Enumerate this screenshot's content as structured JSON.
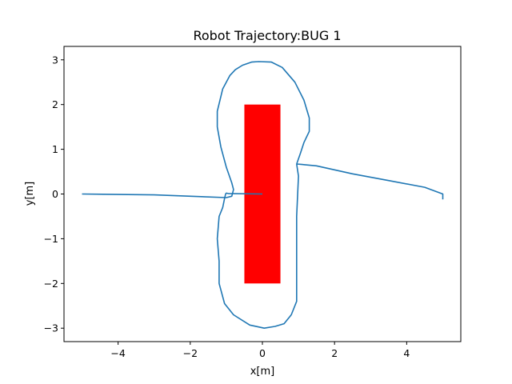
{
  "chart_data": {
    "type": "line",
    "title": "Robot Trajectory:BUG 1",
    "xlabel": "x[m]",
    "ylabel": "y[m]",
    "xlim": [
      -5.5,
      5.5
    ],
    "ylim": [
      -3.3,
      3.3
    ],
    "xticks": [
      -4,
      -2,
      0,
      2,
      4
    ],
    "yticks": [
      -3,
      -2,
      -1,
      0,
      1,
      2,
      3
    ],
    "grid": false,
    "line_color": "#1f77b4",
    "obstacle": {
      "shape": "rectangle",
      "x": [
        -0.5,
        0.5
      ],
      "y": [
        -2,
        2
      ],
      "color": "#ff0000"
    },
    "series": [
      {
        "x": [
          -5.0,
          -3.0,
          -1.0,
          -0.85,
          -0.8,
          -0.85,
          -1.0,
          -1.15,
          -1.25,
          -1.25,
          -1.1,
          -0.9,
          -0.75,
          -0.55,
          -0.3,
          -0.1,
          0.25,
          0.55,
          0.9,
          1.15,
          1.3,
          1.3,
          1.15,
          1.05,
          0.95
        ],
        "y": [
          0.0,
          -0.02,
          -0.08,
          -0.05,
          0.1,
          0.25,
          0.6,
          1.05,
          1.5,
          1.85,
          2.35,
          2.65,
          2.78,
          2.88,
          2.95,
          2.96,
          2.95,
          2.83,
          2.5,
          2.1,
          1.7,
          1.4,
          1.15,
          0.9,
          0.67
        ]
      },
      {
        "x": [
          0.95,
          1.0,
          0.95,
          0.95,
          0.95,
          0.95,
          0.95,
          0.8,
          0.6,
          0.35,
          0.05,
          -0.35,
          -0.8,
          -1.05,
          -1.2,
          -1.2,
          -1.25,
          -1.2,
          -1.1,
          -1.05,
          -1.02,
          -1.0,
          -0.95,
          0.0
        ],
        "y": [
          0.67,
          0.4,
          -0.5,
          -1.0,
          -1.5,
          -2.0,
          -2.4,
          -2.7,
          -2.9,
          -2.96,
          -3.0,
          -2.93,
          -2.7,
          -2.45,
          -2.0,
          -1.5,
          -1.0,
          -0.5,
          -0.3,
          -0.1,
          0.0,
          0.02,
          0.01,
          0.0
        ]
      },
      {
        "x": [
          0.95,
          1.1,
          1.5,
          2.5,
          3.5,
          4.5,
          5.0,
          5.0
        ],
        "y": [
          0.67,
          0.66,
          0.63,
          0.45,
          0.3,
          0.15,
          0.0,
          -0.12
        ]
      }
    ]
  }
}
